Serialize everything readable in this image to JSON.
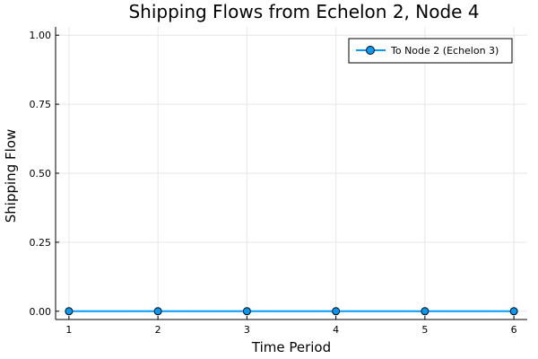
{
  "chart_data": {
    "type": "line",
    "title": "Shipping Flows from Echelon 2, Node 4",
    "xlabel": "Time Period",
    "ylabel": "Shipping Flow",
    "x": [
      1,
      2,
      3,
      4,
      5,
      6
    ],
    "xlim": [
      0.85,
      6.15
    ],
    "ylim": [
      -0.03,
      1.03
    ],
    "xticks": [
      1,
      2,
      3,
      4,
      5,
      6
    ],
    "yticks": [
      0.0,
      0.25,
      0.5,
      0.75,
      1.0
    ],
    "ytick_labels": [
      "0.00",
      "0.25",
      "0.50",
      "0.75",
      "1.00"
    ],
    "grid": true,
    "legend_position": "top-right",
    "series": [
      {
        "name": "To Node 2 (Echelon 3)",
        "values": [
          0,
          0,
          0,
          0,
          0,
          0
        ],
        "color": "#009af9",
        "marker": "circle"
      }
    ]
  }
}
